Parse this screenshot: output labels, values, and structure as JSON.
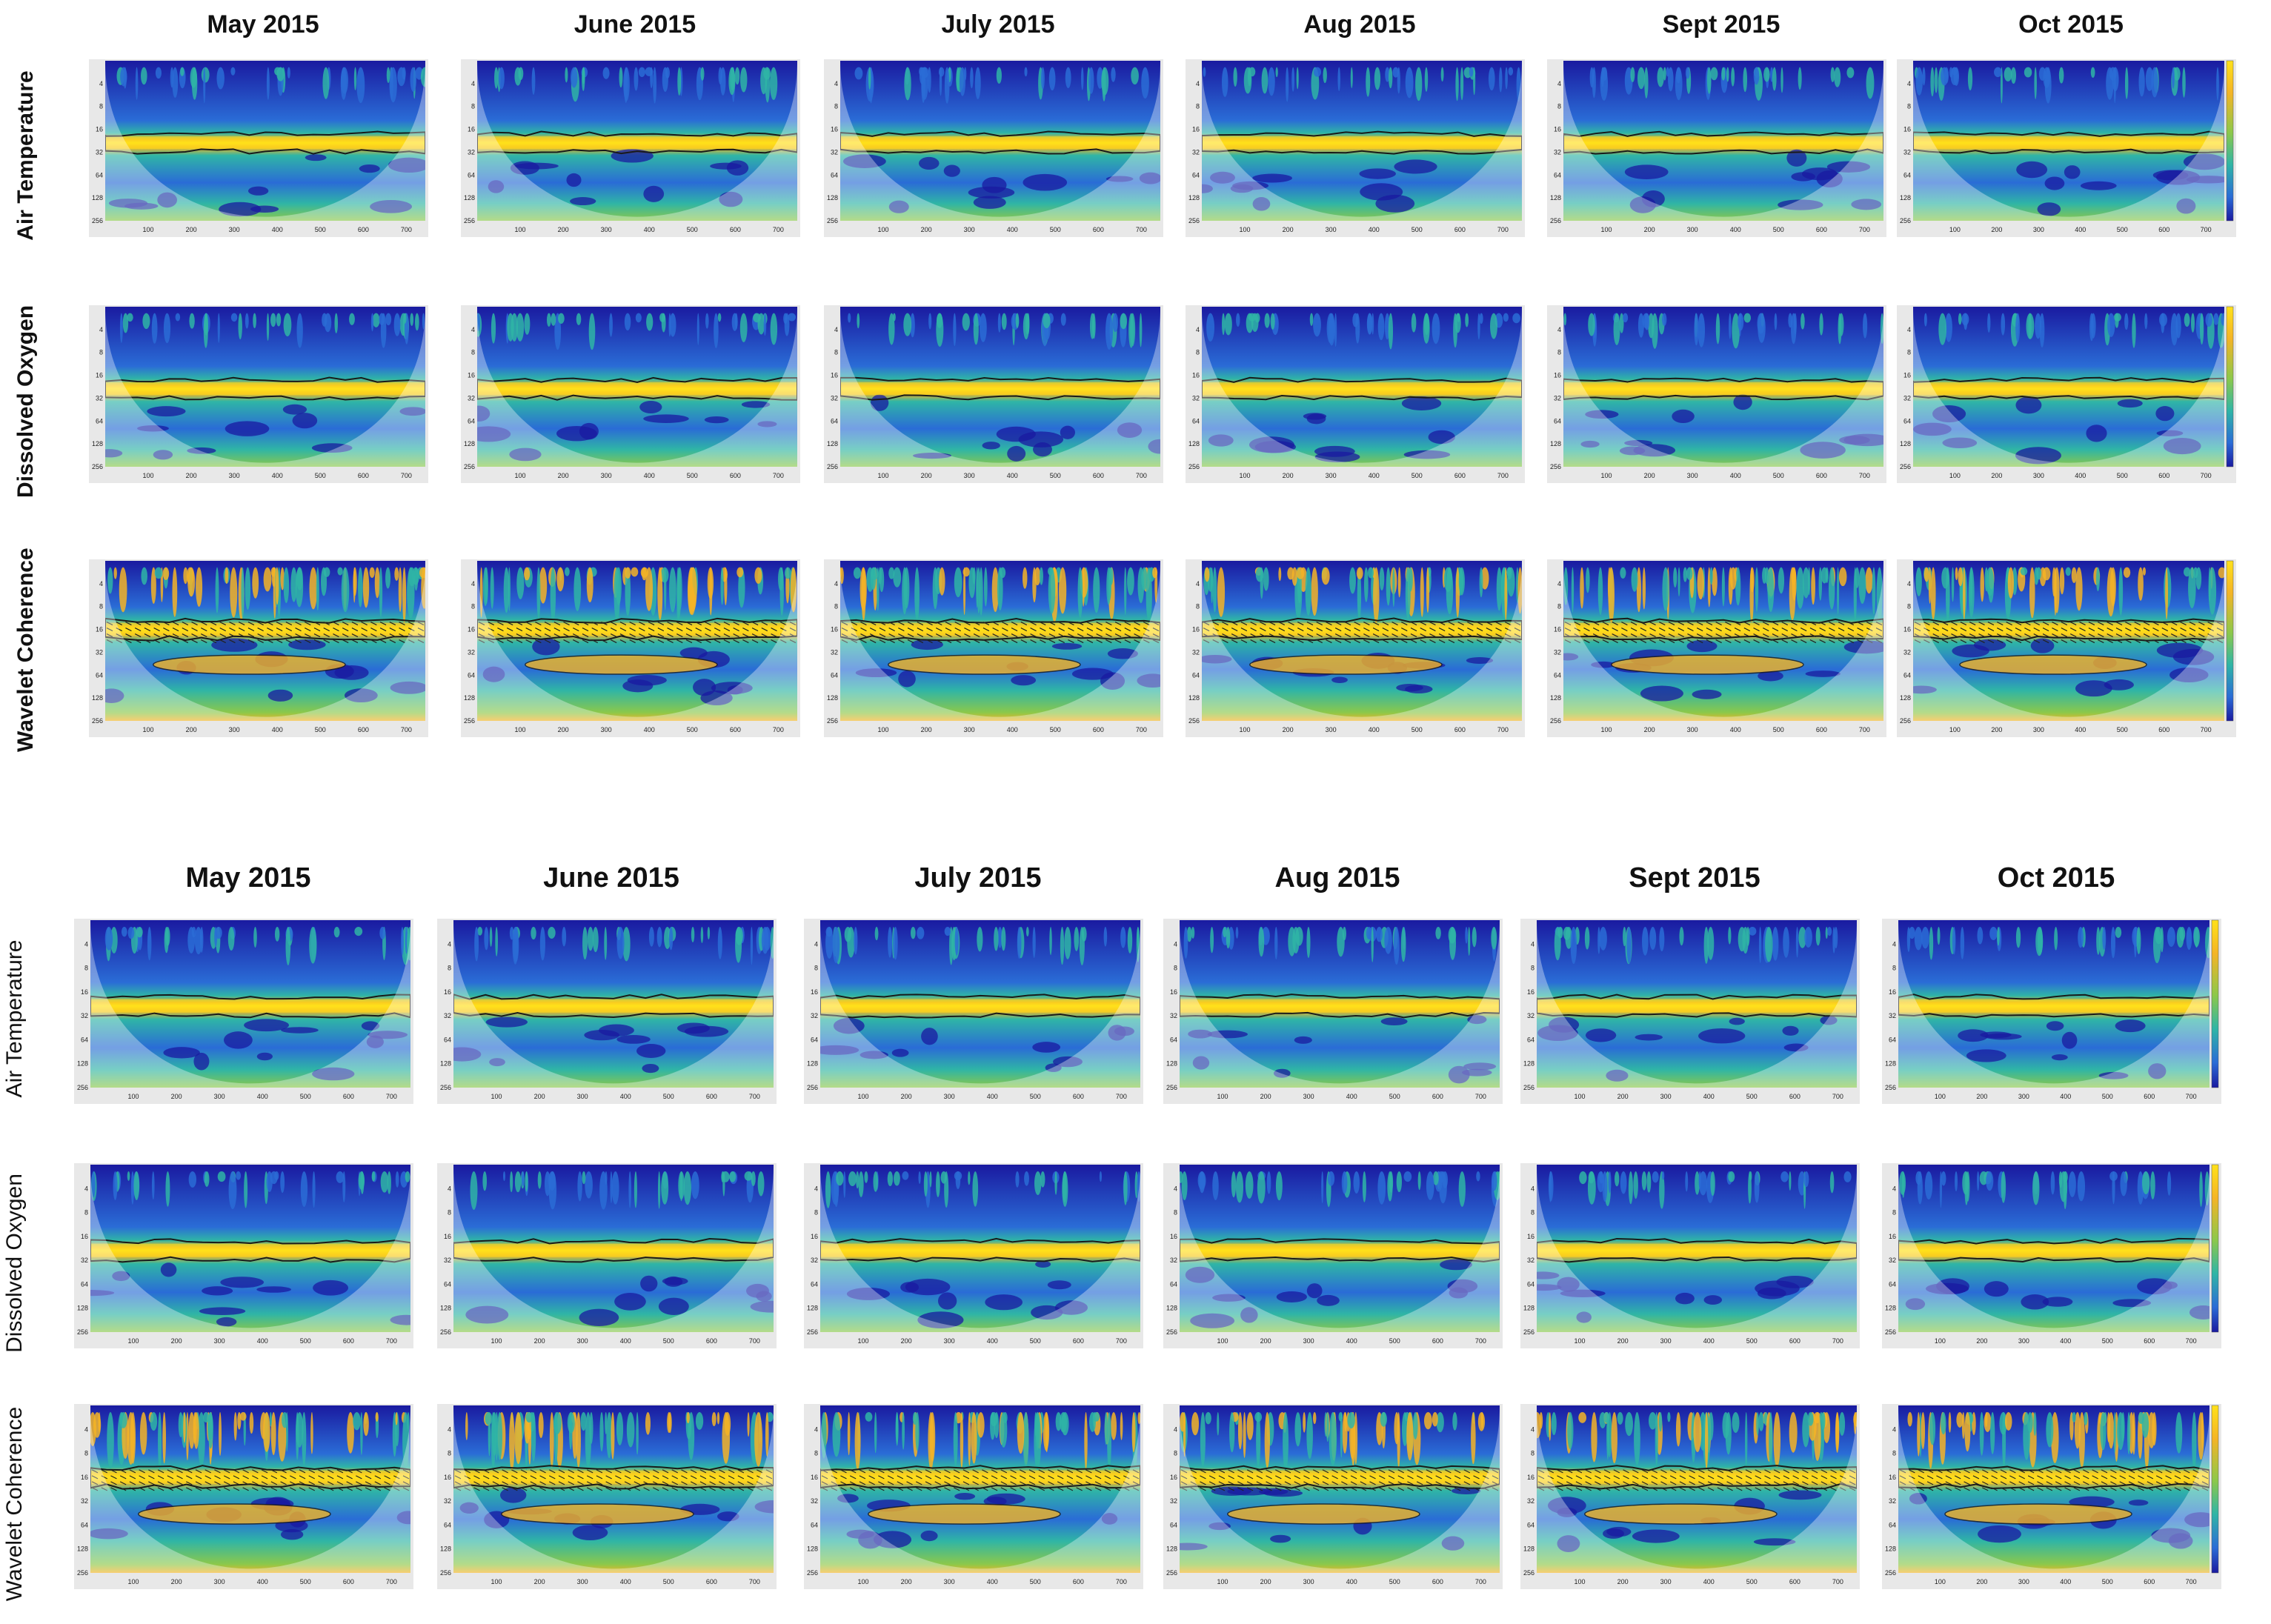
{
  "figure": {
    "blocks": [
      {
        "months": [
          "May 2015",
          "June 2015",
          "July 2015",
          "Aug 2015",
          "Sept 2015",
          "Oct 2015"
        ],
        "rows": [
          "Air Temperature",
          "Dissolved Oxygen",
          "Wavelet Coherence"
        ]
      },
      {
        "months": [
          "May 2015",
          "June 2015",
          "July 2015",
          "Aug 2015",
          "Sept 2015",
          "Oct 2015"
        ],
        "rows": [
          "Air Temperature",
          "Dissolved Oxygen",
          "Wavelet Coherence"
        ]
      }
    ]
  },
  "chart_data": {
    "type": "heatmap",
    "description_kind": "wavelet power spectra and wavelet coherence grid",
    "period_ticks": [
      "4",
      "8",
      "16",
      "32",
      "64",
      "128",
      "256"
    ],
    "time_ticks": [
      "100",
      "200",
      "300",
      "400",
      "500",
      "600",
      "700"
    ],
    "x_range": [
      0,
      744
    ],
    "y_scale": "log2",
    "y_range": [
      2,
      256
    ],
    "dominant_period_band": {
      "Air Temperature": 24,
      "Dissolved Oxygen": 24,
      "Wavelet Coherence": 16
    },
    "colors": {
      "low_power": "#1a1aa0",
      "mid_low": "#2a6cd6",
      "mid": "#2fb5a6",
      "mid_high": "#8cc84a",
      "high": "#f4b426",
      "peak": "#ffe11a"
    }
  }
}
